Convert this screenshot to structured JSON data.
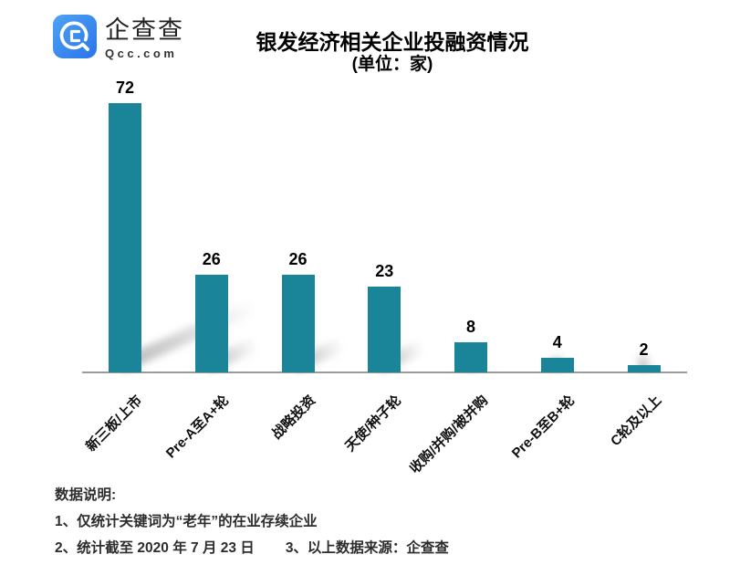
{
  "logo": {
    "brand": "企查查",
    "domain": "Qcc.com"
  },
  "header": {
    "title": "银发经济相关企业投融资情况",
    "unit": "(单位：家)"
  },
  "chart_data": {
    "type": "bar",
    "title": "银发经济相关企业投融资情况",
    "subtitle_unit": "(单位：家)",
    "categories": [
      "新三板/上市",
      "Pre-A至A+轮",
      "战略投资",
      "天使/种子轮",
      "收购/并购/被并购",
      "Pre-B至B+轮",
      "C轮及以上"
    ],
    "values": [
      72,
      26,
      26,
      23,
      8,
      4,
      2
    ],
    "bar_color": "#1a8598",
    "axis_color": "#9b9b9b",
    "value_label_color": "#000000",
    "ylim": [
      0,
      80
    ],
    "grid": false,
    "legend": false,
    "value_labels": true,
    "xlabel": "",
    "ylabel": ""
  },
  "notes": {
    "heading": "数据说明:",
    "item1": "1、仅统计关键词为“老年”的在业存续企业",
    "item2": "2、统计截至 2020 年 7 月 23 日",
    "item3": "3、以上数据来源：企查查"
  },
  "colors": {
    "logo_blue_light": "#4da3f4",
    "logo_blue_dark": "#2b74ea",
    "background": "#ffffff"
  }
}
